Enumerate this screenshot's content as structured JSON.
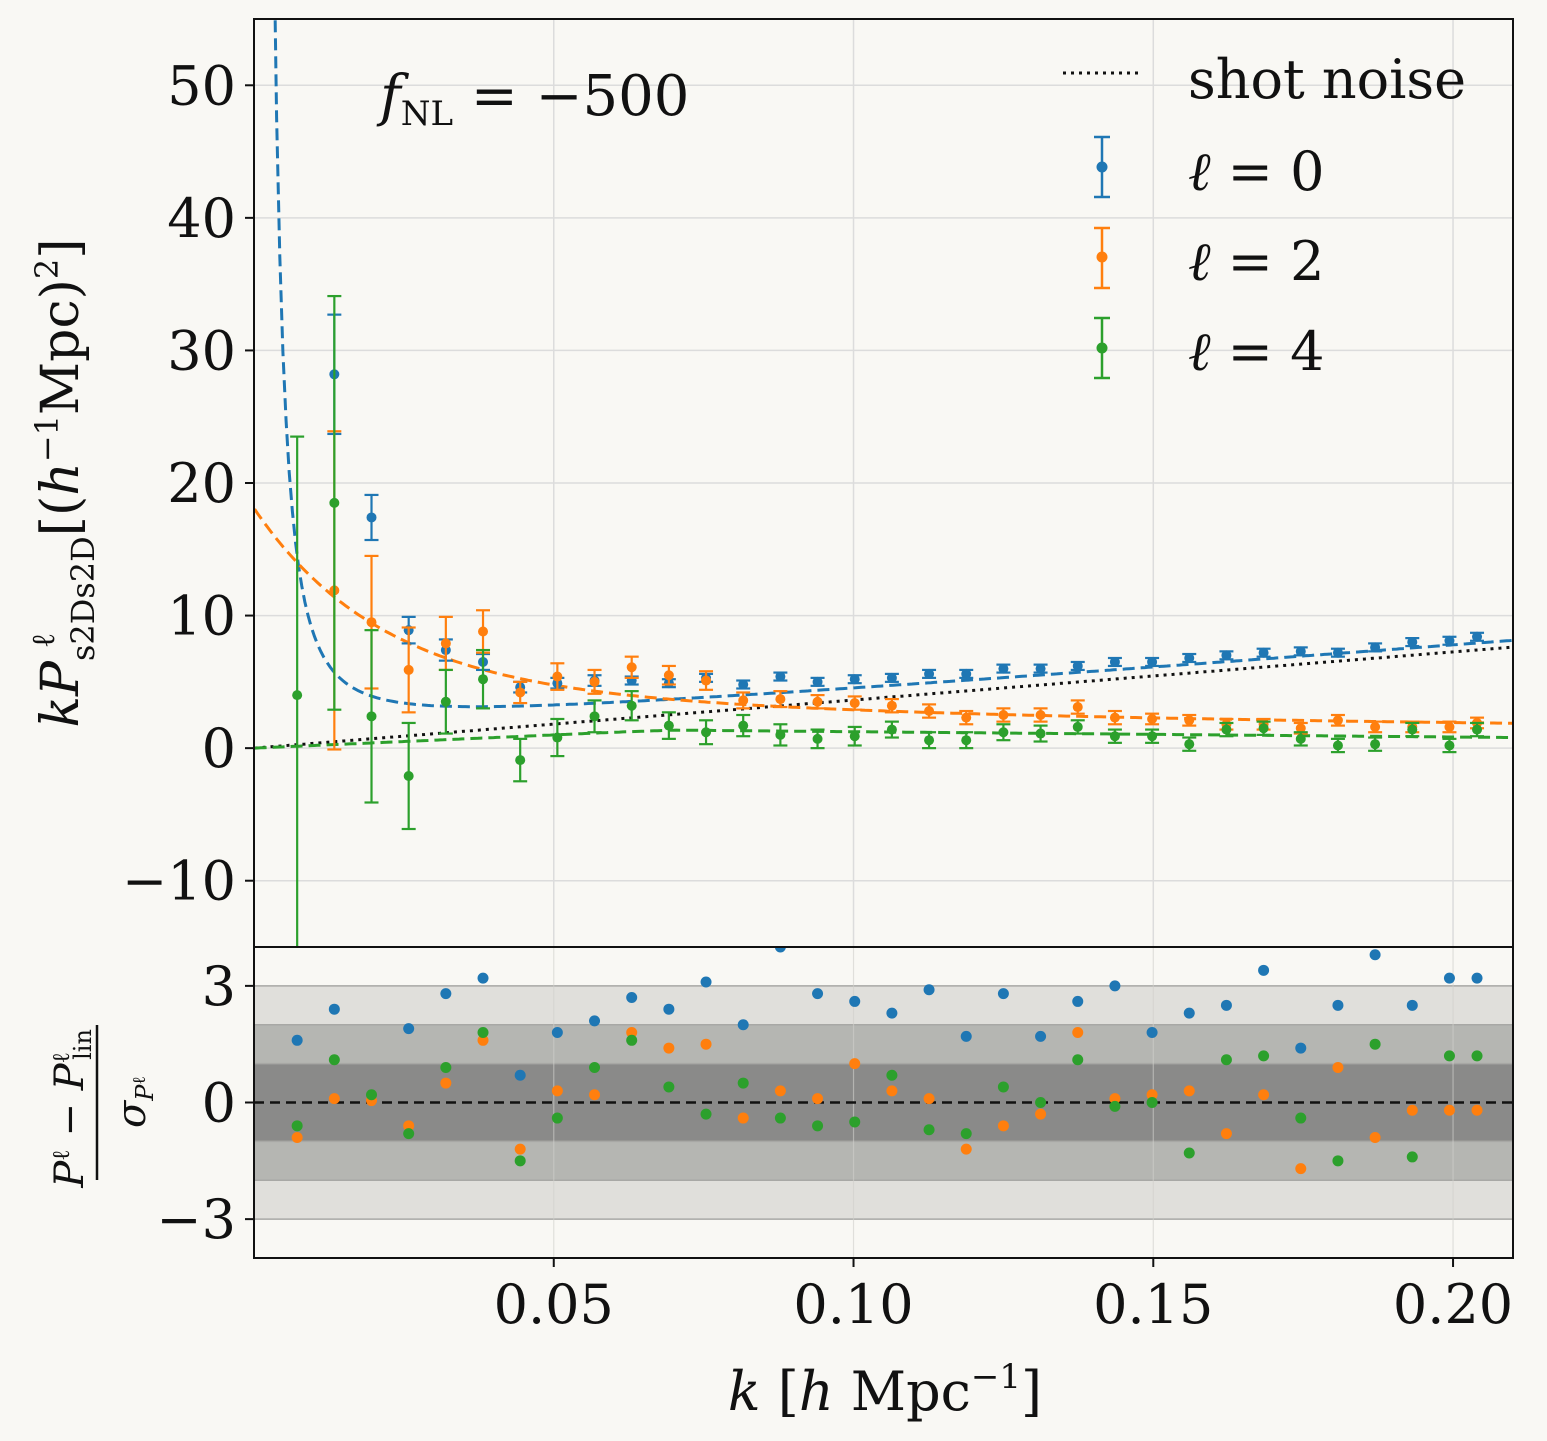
{
  "chart_data": [
    {
      "type": "scatter",
      "panel": "top",
      "annotation": "f_NL = −500",
      "xlabel": "k [h Mpc^-1]",
      "ylabel": "k P^ℓ_s2Ds2D [(h^-1 Mpc)^2]",
      "xlim": [
        0.0,
        0.21
      ],
      "ylim": [
        -15,
        55
      ],
      "xticks": [
        "0.05",
        "0.10",
        "0.15",
        "0.20"
      ],
      "yticks": [
        "−10",
        "0",
        "10",
        "20",
        "30",
        "40",
        "50"
      ],
      "grid": true,
      "legend_position": "top-right",
      "legend": [
        "shot noise",
        "ℓ = 0",
        "ℓ = 2",
        "ℓ = 4"
      ],
      "x": [
        0.0072,
        0.0134,
        0.0196,
        0.0258,
        0.032,
        0.0382,
        0.0444,
        0.0506,
        0.0568,
        0.063,
        0.0692,
        0.0754,
        0.0816,
        0.0878,
        0.094,
        0.1002,
        0.1064,
        0.1126,
        0.1188,
        0.125,
        0.1312,
        0.1374,
        0.1436,
        0.1498,
        0.156,
        0.1622,
        0.1684,
        0.1746,
        0.1808,
        0.187,
        0.1932,
        0.1994,
        0.204
      ],
      "series": [
        {
          "name": "ℓ = 0",
          "color": "#1f77b4",
          "y": [
            null,
            28.2,
            17.4,
            8.9,
            7.4,
            6.5,
            4.6,
            4.9,
            5.1,
            5.1,
            4.9,
            5.3,
            4.8,
            5.4,
            5.0,
            5.2,
            5.3,
            5.6,
            5.6,
            6.0,
            6.0,
            6.2,
            6.5,
            6.5,
            6.8,
            7.0,
            7.2,
            7.3,
            7.2,
            7.6,
            8.0,
            8.1,
            8.4
          ],
          "yerr": [
            null,
            4.5,
            1.7,
            1.0,
            0.8,
            0.6,
            0.4,
            0.4,
            0.4,
            0.3,
            0.3,
            0.3,
            0.3,
            0.3,
            0.3,
            0.3,
            0.3,
            0.3,
            0.3,
            0.3,
            0.3,
            0.3,
            0.3,
            0.3,
            0.3,
            0.3,
            0.3,
            0.3,
            0.3,
            0.3,
            0.3,
            0.3,
            0.3
          ],
          "model_curve": "dashed"
        },
        {
          "name": "ℓ = 2",
          "color": "#ff7f0e",
          "y": [
            null,
            11.9,
            9.5,
            5.9,
            7.9,
            8.8,
            4.2,
            5.4,
            5.0,
            6.1,
            5.5,
            5.1,
            3.6,
            3.7,
            3.5,
            3.4,
            3.2,
            2.8,
            2.3,
            2.5,
            2.5,
            3.1,
            2.3,
            2.2,
            2.1,
            1.8,
            1.8,
            1.5,
            2.1,
            1.6,
            1.6,
            1.6,
            1.9
          ],
          "yerr": [
            null,
            12.0,
            5.0,
            3.2,
            2.0,
            1.6,
            0.8,
            1.0,
            0.9,
            0.8,
            0.7,
            0.7,
            0.6,
            0.6,
            0.5,
            0.5,
            0.5,
            0.5,
            0.5,
            0.5,
            0.5,
            0.5,
            0.5,
            0.4,
            0.4,
            0.4,
            0.4,
            0.4,
            0.4,
            0.4,
            0.4,
            0.4,
            0.4
          ],
          "model_curve": "dashed"
        },
        {
          "name": "ℓ = 4",
          "color": "#2ca02c",
          "y": [
            4.0,
            18.5,
            2.4,
            -2.1,
            3.5,
            5.2,
            -0.9,
            0.8,
            2.4,
            3.2,
            1.7,
            1.2,
            1.7,
            1.0,
            0.7,
            0.9,
            1.4,
            0.6,
            0.6,
            1.2,
            1.1,
            1.6,
            0.9,
            0.9,
            0.3,
            1.4,
            1.5,
            0.7,
            0.2,
            0.3,
            1.4,
            0.2,
            1.4
          ],
          "yerr": [
            19.5,
            15.6,
            6.5,
            4.0,
            2.4,
            2.2,
            1.6,
            1.4,
            1.2,
            1.1,
            1.0,
            0.9,
            0.8,
            0.8,
            0.7,
            0.7,
            0.6,
            0.6,
            0.6,
            0.6,
            0.6,
            0.5,
            0.5,
            0.5,
            0.5,
            0.5,
            0.5,
            0.5,
            0.5,
            0.5,
            0.5,
            0.5,
            0.5
          ],
          "model_curve": "dashed"
        }
      ]
    },
    {
      "type": "scatter",
      "panel": "bottom",
      "ylabel": "(P^ℓ − P^ℓ_lin) / σ_P^ℓ",
      "xlim": [
        0.0,
        0.21
      ],
      "ylim": [
        -4,
        4
      ],
      "yticks": [
        "3",
        "0",
        "−3"
      ],
      "bands": [
        1,
        2,
        3
      ],
      "x": [
        0.0072,
        0.0134,
        0.0196,
        0.0258,
        0.032,
        0.0382,
        0.0444,
        0.0506,
        0.0568,
        0.063,
        0.0692,
        0.0754,
        0.0816,
        0.0878,
        0.094,
        0.1002,
        0.1064,
        0.1126,
        0.1188,
        0.125,
        0.1312,
        0.1374,
        0.1436,
        0.1498,
        0.156,
        0.1622,
        0.1684,
        0.1746,
        0.1808,
        0.187,
        0.1932,
        0.1994,
        0.204
      ],
      "series": [
        {
          "name": "ℓ = 0",
          "color": "#1f77b4",
          "y": [
            1.6,
            2.4,
            null,
            1.9,
            2.8,
            3.2,
            0.7,
            1.8,
            2.1,
            2.7,
            2.4,
            3.1,
            2.0,
            4.0,
            2.8,
            2.6,
            2.3,
            2.9,
            1.7,
            2.8,
            1.7,
            2.6,
            3.0,
            1.8,
            2.3,
            2.5,
            3.4,
            1.4,
            2.5,
            3.8,
            2.5,
            3.2,
            3.2
          ],
          "model_curve": "none"
        },
        {
          "name": "ℓ = 2",
          "color": "#ff7f0e",
          "y": [
            -0.9,
            0.1,
            0.05,
            -0.6,
            0.5,
            1.6,
            -1.2,
            0.3,
            0.2,
            1.8,
            1.4,
            1.5,
            -0.4,
            0.3,
            0.1,
            1.0,
            0.3,
            0.1,
            -1.2,
            -0.6,
            -0.3,
            1.8,
            0.1,
            0.2,
            0.3,
            -0.8,
            0.2,
            -1.7,
            0.9,
            -0.9,
            -0.2,
            -0.2,
            -0.2
          ],
          "model_curve": "none"
        },
        {
          "name": "ℓ = 4",
          "color": "#2ca02c",
          "y": [
            -0.6,
            1.1,
            0.2,
            -0.8,
            0.9,
            1.8,
            -1.5,
            -0.4,
            0.9,
            1.6,
            0.4,
            -0.3,
            0.5,
            -0.4,
            -0.6,
            -0.5,
            0.7,
            -0.7,
            -0.8,
            0.4,
            0.0,
            1.1,
            -0.1,
            0.0,
            -1.3,
            1.1,
            1.2,
            -0.4,
            -1.5,
            1.5,
            -1.4,
            1.2,
            1.2
          ],
          "model_curve": "none"
        }
      ]
    }
  ]
}
